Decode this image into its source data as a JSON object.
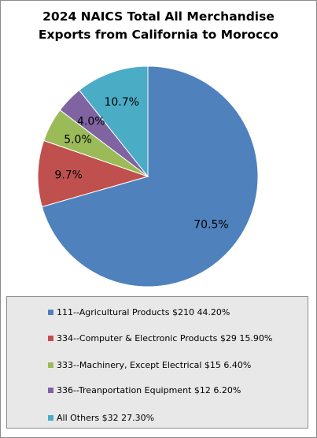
{
  "chart_data": {
    "type": "pie",
    "title_lines": [
      "2024 NAICS Total All Merchandise",
      "Exports from California to Morocco"
    ],
    "slices": [
      {
        "label": "70.5%",
        "value": 70.5,
        "color": "#4F81BD"
      },
      {
        "label": "9.7%",
        "value": 9.7,
        "color": "#C0504D"
      },
      {
        "label": "5.0%",
        "value": 5.0,
        "color": "#9BBB59"
      },
      {
        "label": "4.0%",
        "value": 4.0,
        "color": "#8064A2"
      },
      {
        "label": "10.7%",
        "value": 10.7,
        "color": "#4BACC6"
      }
    ],
    "legend": [
      {
        "text": "111--Agricultural Products $210 44.20%",
        "color": "#4F81BD"
      },
      {
        "text": "334--Computer & Electronic Products $29 15.90%",
        "color": "#C0504D"
      },
      {
        "text": "333--Machinery, Except Electrical $15 6.40%",
        "color": "#9BBB59"
      },
      {
        "text": "336--Treanportation Equipment $12 6.20%",
        "color": "#8064A2"
      },
      {
        "text": "All Others $32 27.30%",
        "color": "#4BACC6"
      }
    ],
    "start_angle": "12 o'clock",
    "direction": "clockwise",
    "legend_position": "bottom"
  }
}
